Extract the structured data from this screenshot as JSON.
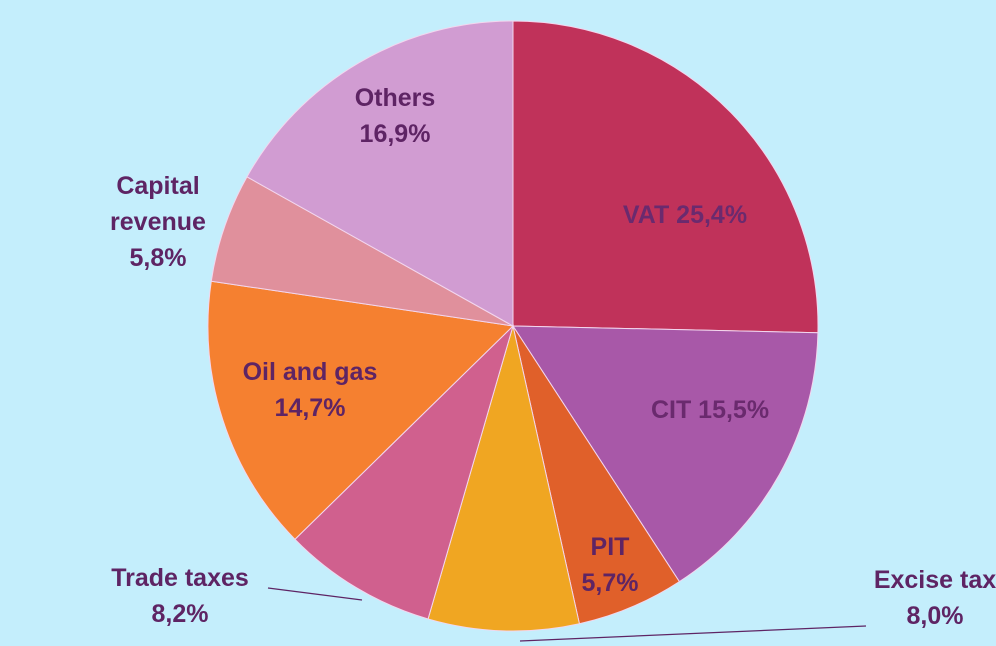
{
  "chart_data": {
    "type": "pie",
    "categories": [
      "VAT",
      "CIT",
      "PIT",
      "Excise tax",
      "Trade taxes",
      "Oil and gas",
      "Capital revenue",
      "Others"
    ],
    "values": [
      25.4,
      15.5,
      5.7,
      8.0,
      8.2,
      14.7,
      5.8,
      16.9
    ],
    "value_labels": [
      "25,4%",
      "15,5%",
      "5,7%",
      "8,0%",
      "8,2%",
      "14,7%",
      "5,8%",
      "16,9%"
    ],
    "colors": [
      "#c0325a",
      "#a858a8",
      "#e0602a",
      "#f0a622",
      "#d0608e",
      "#f58030",
      "#e0909c",
      "#d19cd2"
    ]
  }
}
